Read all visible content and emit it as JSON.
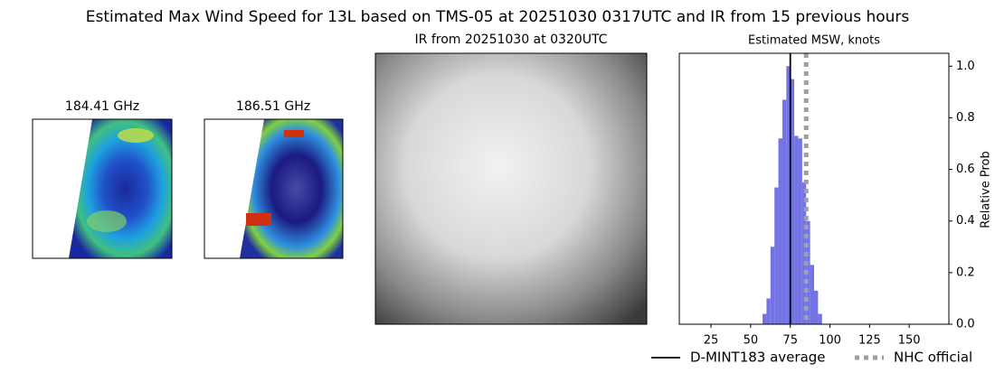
{
  "title": "Estimated Max Wind Speed for 13L based on TMS-05 at 20251030 0317UTC and IR from 15 previous hours",
  "panels": [
    {
      "title": "184.41 GHz"
    },
    {
      "title": "186.51 GHz"
    },
    {
      "title": "IR from 20251030 at 0320UTC"
    }
  ],
  "chart_data": {
    "type": "histogram",
    "title": "Estimated MSW, knots",
    "y_label": "Relative Prob",
    "bins": [
      57.5,
      60,
      62.5,
      65,
      67.5,
      70,
      72.5,
      75,
      77.5,
      80,
      82.5,
      85,
      87.5,
      90,
      92.5,
      95
    ],
    "counts": [
      0.04,
      0.1,
      0.3,
      0.53,
      0.72,
      0.87,
      1.0,
      0.95,
      0.73,
      0.72,
      0.55,
      0.4,
      0.23,
      0.13,
      0.04
    ],
    "color": "#7373e6",
    "xlim": [
      5,
      175
    ],
    "xticks": [
      25,
      50,
      75,
      100,
      125,
      150
    ],
    "ylim": [
      0,
      1.05
    ],
    "yticks": [
      {
        "value": 0,
        "label": "0.0"
      },
      0.2,
      0.4,
      0.6,
      0.8,
      {
        "value": 1,
        "label": "1.0"
      }
    ],
    "y_axis_side": "right",
    "lines": [
      {
        "name": "D-MINT183 average",
        "value": 75,
        "color": "#000000",
        "style": "solid"
      },
      {
        "name": "NHC official",
        "value": 85,
        "color": "#a0a0a0",
        "style": "dotted"
      }
    ]
  }
}
